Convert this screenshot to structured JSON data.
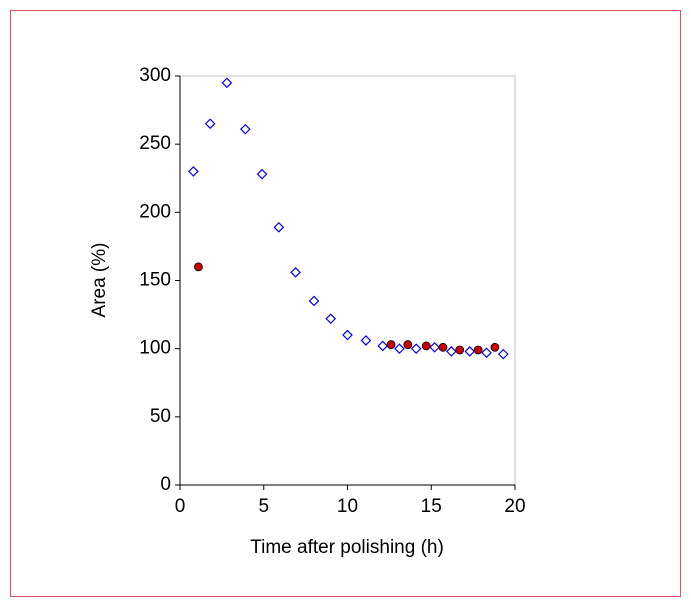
{
  "chart_data": {
    "type": "scatter",
    "xlabel": "Time after polishing (h)",
    "ylabel": "Area (%)",
    "xlim": [
      0,
      20
    ],
    "xticks": [
      0,
      5,
      10,
      15,
      20
    ],
    "ylim": [
      0,
      300
    ],
    "yticks": [
      0,
      50,
      100,
      150,
      200,
      250,
      300
    ],
    "series": [
      {
        "color": "#0000ff",
        "marker": "diamond",
        "x": [
          0.8,
          1.8,
          2.8,
          3.9,
          4.9,
          5.9,
          6.9,
          8.0,
          9.0,
          10.0,
          11.1,
          12.1,
          13.1,
          14.1,
          15.2,
          16.2,
          17.3,
          18.3,
          19.3
        ],
        "values": [
          230,
          265,
          295,
          261,
          228,
          189,
          156,
          135,
          122,
          110,
          106,
          102,
          100,
          100,
          101,
          98,
          98,
          97,
          96
        ]
      },
      {
        "color": "#cc0000",
        "marker": "circle",
        "x": [
          1.1,
          12.6,
          13.6,
          14.7,
          15.7,
          16.7,
          17.8,
          18.8
        ],
        "values": [
          160,
          103,
          103,
          102,
          101,
          99,
          99,
          101
        ]
      }
    ]
  }
}
